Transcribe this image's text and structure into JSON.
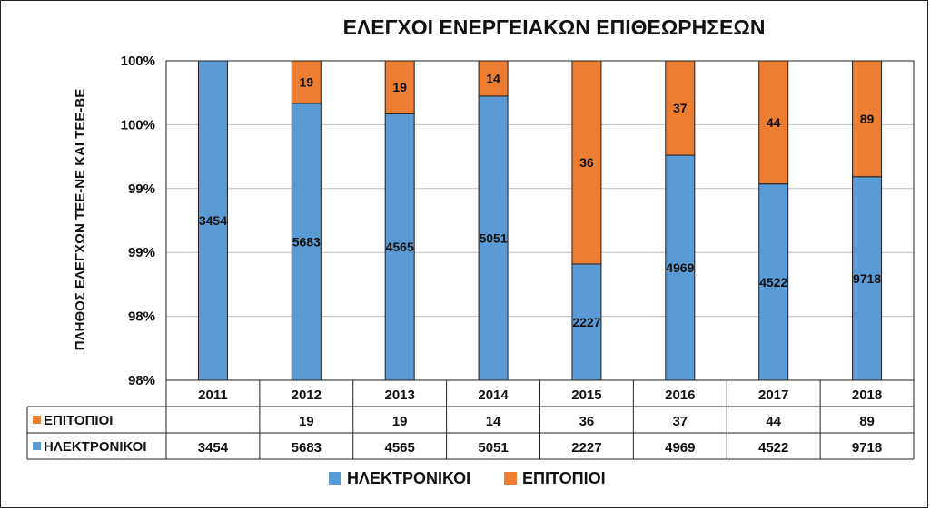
{
  "chart_data": {
    "type": "bar",
    "stacked": true,
    "normalized": true,
    "title": "ΕΛΕΓΧΟΙ ΕΝΕΡΓΕΙΑΚΩΝ ΕΠΙΘΕΩΡΗΣΕΩΝ",
    "ylabel": "ΠΛΗΘΟΣ  ΕΛΕΓΧΩΝ ΤΕΕ-ΝΕ ΚΑΙ ΤΕΕ-ΒΕ",
    "xlabel": "",
    "categories": [
      "2011",
      "2012",
      "2013",
      "2014",
      "2015",
      "2016",
      "2017",
      "2018"
    ],
    "yticks": [
      "100%",
      "100%",
      "99%",
      "99%",
      "98%",
      "98%"
    ],
    "ylim": [
      0.975,
      1.0
    ],
    "series": [
      {
        "name": "ΗΛΕΚΤΡΟΝΙΚΟΙ",
        "color": "#5b9bd5",
        "values": [
          3454,
          5683,
          4565,
          5051,
          2227,
          4969,
          4522,
          9718
        ]
      },
      {
        "name": "ΕΠΙΤΟΠΙΟΙ",
        "color": "#ed7d31",
        "values": [
          null,
          19,
          19,
          14,
          36,
          37,
          44,
          89
        ]
      }
    ],
    "legend": [
      "ΗΛΕΚΤΡΟΝΙΚΟΙ",
      "ΕΠΙΤΟΠΙΟΙ"
    ],
    "legend_position": "bottom",
    "data_table": true,
    "grid": true
  }
}
